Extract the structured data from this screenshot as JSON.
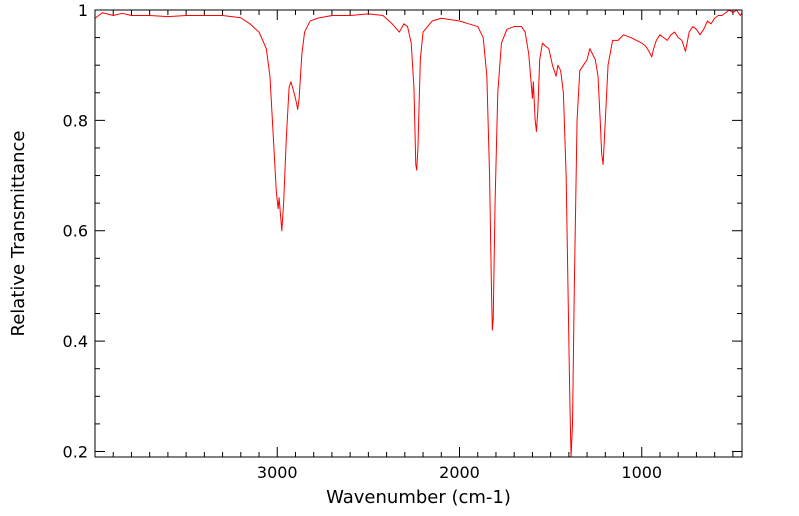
{
  "chart_data": {
    "type": "line",
    "title": "",
    "xlabel": "Wavenumber (cm-1)",
    "ylabel": "Relative Transmittance",
    "xlim": [
      4000,
      450
    ],
    "ylim": [
      0.19,
      1.0
    ],
    "x_reversed": true,
    "grid": false,
    "legend": "none",
    "line_color": "#ff0000",
    "x_ticks": [
      {
        "value": 3000,
        "label": "3000"
      },
      {
        "value": 2000,
        "label": "2000"
      },
      {
        "value": 1000,
        "label": "1000"
      }
    ],
    "y_ticks": [
      {
        "value": 0.2,
        "label": "0.2"
      },
      {
        "value": 0.4,
        "label": "0.4"
      },
      {
        "value": 0.6,
        "label": "0.6"
      },
      {
        "value": 0.8,
        "label": "0.8"
      },
      {
        "value": 1.0,
        "label": "1"
      }
    ],
    "series": [
      {
        "points": [
          [
            4000,
            0.985
          ],
          [
            3960,
            0.995
          ],
          [
            3900,
            0.99
          ],
          [
            3850,
            0.994
          ],
          [
            3800,
            0.99
          ],
          [
            3700,
            0.99
          ],
          [
            3600,
            0.988
          ],
          [
            3500,
            0.99
          ],
          [
            3400,
            0.99
          ],
          [
            3300,
            0.99
          ],
          [
            3200,
            0.986
          ],
          [
            3150,
            0.975
          ],
          [
            3100,
            0.96
          ],
          [
            3060,
            0.93
          ],
          [
            3040,
            0.88
          ],
          [
            3020,
            0.76
          ],
          [
            3005,
            0.67
          ],
          [
            2995,
            0.64
          ],
          [
            2990,
            0.66
          ],
          [
            2975,
            0.6
          ],
          [
            2965,
            0.65
          ],
          [
            2950,
            0.77
          ],
          [
            2935,
            0.86
          ],
          [
            2925,
            0.87
          ],
          [
            2912,
            0.855
          ],
          [
            2900,
            0.84
          ],
          [
            2888,
            0.82
          ],
          [
            2880,
            0.84
          ],
          [
            2865,
            0.92
          ],
          [
            2850,
            0.96
          ],
          [
            2820,
            0.98
          ],
          [
            2780,
            0.985
          ],
          [
            2700,
            0.99
          ],
          [
            2600,
            0.99
          ],
          [
            2500,
            0.993
          ],
          [
            2420,
            0.99
          ],
          [
            2370,
            0.975
          ],
          [
            2330,
            0.96
          ],
          [
            2305,
            0.975
          ],
          [
            2285,
            0.97
          ],
          [
            2265,
            0.94
          ],
          [
            2250,
            0.86
          ],
          [
            2240,
            0.72
          ],
          [
            2235,
            0.71
          ],
          [
            2228,
            0.75
          ],
          [
            2215,
            0.91
          ],
          [
            2200,
            0.96
          ],
          [
            2150,
            0.98
          ],
          [
            2100,
            0.985
          ],
          [
            2000,
            0.98
          ],
          [
            1950,
            0.975
          ],
          [
            1900,
            0.97
          ],
          [
            1870,
            0.95
          ],
          [
            1850,
            0.88
          ],
          [
            1835,
            0.7
          ],
          [
            1825,
            0.5
          ],
          [
            1820,
            0.42
          ],
          [
            1815,
            0.44
          ],
          [
            1805,
            0.65
          ],
          [
            1790,
            0.85
          ],
          [
            1770,
            0.94
          ],
          [
            1740,
            0.965
          ],
          [
            1700,
            0.97
          ],
          [
            1660,
            0.97
          ],
          [
            1640,
            0.96
          ],
          [
            1620,
            0.92
          ],
          [
            1600,
            0.84
          ],
          [
            1595,
            0.87
          ],
          [
            1585,
            0.8
          ],
          [
            1578,
            0.78
          ],
          [
            1570,
            0.82
          ],
          [
            1560,
            0.91
          ],
          [
            1545,
            0.94
          ],
          [
            1530,
            0.935
          ],
          [
            1510,
            0.93
          ],
          [
            1490,
            0.9
          ],
          [
            1470,
            0.88
          ],
          [
            1460,
            0.9
          ],
          [
            1445,
            0.89
          ],
          [
            1430,
            0.85
          ],
          [
            1415,
            0.7
          ],
          [
            1405,
            0.5
          ],
          [
            1395,
            0.3
          ],
          [
            1388,
            0.19
          ],
          [
            1380,
            0.25
          ],
          [
            1370,
            0.5
          ],
          [
            1355,
            0.8
          ],
          [
            1340,
            0.89
          ],
          [
            1320,
            0.9
          ],
          [
            1300,
            0.91
          ],
          [
            1285,
            0.93
          ],
          [
            1270,
            0.92
          ],
          [
            1255,
            0.91
          ],
          [
            1240,
            0.88
          ],
          [
            1228,
            0.8
          ],
          [
            1220,
            0.74
          ],
          [
            1212,
            0.72
          ],
          [
            1200,
            0.8
          ],
          [
            1185,
            0.9
          ],
          [
            1160,
            0.945
          ],
          [
            1130,
            0.945
          ],
          [
            1100,
            0.955
          ],
          [
            1060,
            0.95
          ],
          [
            1030,
            0.945
          ],
          [
            1000,
            0.94
          ],
          [
            980,
            0.935
          ],
          [
            960,
            0.925
          ],
          [
            945,
            0.915
          ],
          [
            935,
            0.93
          ],
          [
            920,
            0.945
          ],
          [
            900,
            0.955
          ],
          [
            880,
            0.95
          ],
          [
            860,
            0.945
          ],
          [
            840,
            0.955
          ],
          [
            820,
            0.96
          ],
          [
            800,
            0.95
          ],
          [
            780,
            0.945
          ],
          [
            760,
            0.925
          ],
          [
            740,
            0.96
          ],
          [
            720,
            0.97
          ],
          [
            700,
            0.965
          ],
          [
            680,
            0.955
          ],
          [
            660,
            0.965
          ],
          [
            640,
            0.98
          ],
          [
            620,
            0.975
          ],
          [
            600,
            0.985
          ],
          [
            580,
            0.99
          ],
          [
            560,
            0.99
          ],
          [
            540,
            0.995
          ],
          [
            520,
            1.0
          ],
          [
            500,
            0.995
          ],
          [
            480,
            1.0
          ],
          [
            460,
            0.99
          ],
          [
            450,
            0.995
          ]
        ]
      }
    ]
  }
}
